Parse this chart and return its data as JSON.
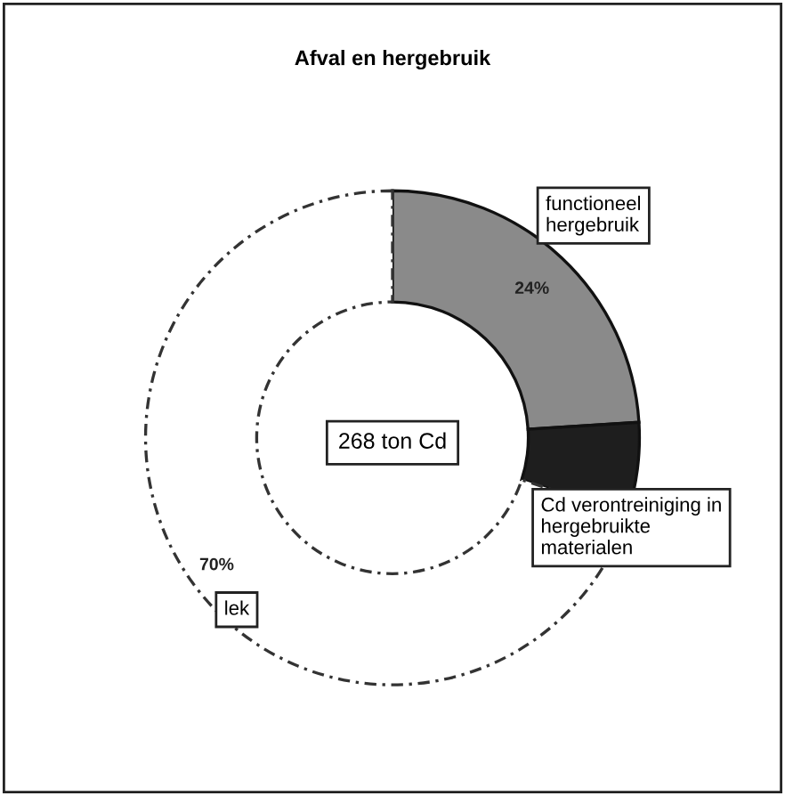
{
  "chart_data": {
    "type": "donut",
    "title": "Afval en hergebruik",
    "categories": [
      "functioneel hergebruik",
      "Cd verontreiniging in hergebruikte materialen",
      "lek"
    ],
    "values": [
      24,
      6,
      70
    ],
    "colors": [
      "#8a8a8a",
      "#1e1e1e",
      "#ffffff"
    ],
    "value_labels": [
      "24%",
      null,
      "70%"
    ],
    "annotations": [
      "268 ton Cd"
    ]
  }
}
